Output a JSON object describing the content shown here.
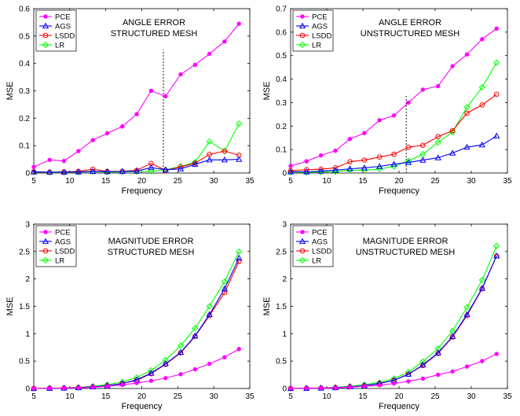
{
  "chart_data": [
    {
      "type": "line",
      "annotation": [
        "ANGLE ERROR",
        "STRUCTURED MESH"
      ],
      "xlabel": "Frequency",
      "ylabel": "MSE",
      "xlim": [
        5,
        35
      ],
      "ylim": [
        0,
        0.6
      ],
      "xticks": [
        5,
        10,
        15,
        20,
        25,
        30,
        35
      ],
      "yticks": [
        0,
        0.1,
        0.2,
        0.3,
        0.4,
        0.5,
        0.6
      ],
      "ytick_labels": [
        "0",
        "0.1",
        "0.2",
        "0.3",
        "0.4",
        "0.5",
        "0.6"
      ],
      "vline_x": 23,
      "legend_position": "top-left",
      "x": [
        5,
        7.2,
        9.2,
        11.2,
        13.2,
        15.2,
        17.3,
        19.3,
        21.3,
        23.3,
        25.4,
        27.4,
        29.4,
        31.5,
        33.5
      ],
      "series": [
        {
          "name": "PCE",
          "color": "#ff00ff",
          "marker": "dot",
          "values": [
            0.022,
            0.048,
            0.044,
            0.08,
            0.12,
            0.145,
            0.17,
            0.215,
            0.3,
            0.28,
            0.36,
            0.395,
            0.435,
            0.48,
            0.545
          ]
        },
        {
          "name": "AGS",
          "color": "#0000ff",
          "marker": "triangle",
          "values": [
            0.004,
            0.003,
            0.003,
            0.004,
            0.006,
            0.005,
            0.006,
            0.007,
            0.02,
            0.012,
            0.015,
            0.032,
            0.048,
            0.048,
            0.05
          ]
        },
        {
          "name": "LSDD",
          "color": "#ff0000",
          "marker": "circle",
          "values": [
            0.004,
            0.003,
            0.004,
            0.006,
            0.014,
            0.006,
            0.006,
            0.01,
            0.035,
            0.01,
            0.022,
            0.036,
            0.068,
            0.08,
            0.065
          ]
        },
        {
          "name": "LR",
          "color": "#00ff00",
          "marker": "diamond",
          "values": [
            0.003,
            0.002,
            0.002,
            0.003,
            0.005,
            0.003,
            0.004,
            0.005,
            0.006,
            0.012,
            0.024,
            0.04,
            0.115,
            0.08,
            0.18
          ]
        }
      ]
    },
    {
      "type": "line",
      "annotation": [
        "ANGLE ERROR",
        "UNSTRUCTURED MESH"
      ],
      "xlabel": "Frequency",
      "ylabel": "MSE",
      "xlim": [
        5,
        35
      ],
      "ylim": [
        0,
        0.7
      ],
      "xticks": [
        5,
        10,
        15,
        20,
        25,
        30,
        35
      ],
      "yticks": [
        0,
        0.1,
        0.2,
        0.3,
        0.4,
        0.5,
        0.6,
        0.7
      ],
      "ytick_labels": [
        "0",
        "0.1",
        "0.2",
        "0.3",
        "0.4",
        "0.5",
        "0.6",
        "0.7"
      ],
      "vline_x": 21,
      "legend_position": "top-left",
      "x": [
        5,
        7.2,
        9.2,
        11.2,
        13.2,
        15.2,
        17.3,
        19.3,
        21.3,
        23.3,
        25.4,
        27.4,
        29.4,
        31.5,
        33.5
      ],
      "series": [
        {
          "name": "PCE",
          "color": "#ff00ff",
          "marker": "dot",
          "values": [
            0.03,
            0.05,
            0.075,
            0.095,
            0.145,
            0.17,
            0.225,
            0.245,
            0.3,
            0.355,
            0.37,
            0.455,
            0.505,
            0.57,
            0.615
          ]
        },
        {
          "name": "AGS",
          "color": "#0000ff",
          "marker": "triangle",
          "values": [
            0.005,
            0.005,
            0.008,
            0.012,
            0.018,
            0.022,
            0.028,
            0.038,
            0.045,
            0.055,
            0.065,
            0.085,
            0.11,
            0.12,
            0.158
          ]
        },
        {
          "name": "LSDD",
          "color": "#ff0000",
          "marker": "circle",
          "values": [
            0.01,
            0.014,
            0.016,
            0.022,
            0.048,
            0.055,
            0.068,
            0.08,
            0.11,
            0.118,
            0.155,
            0.18,
            0.255,
            0.29,
            0.335
          ]
        },
        {
          "name": "LR",
          "color": "#00ff00",
          "marker": "diamond",
          "values": [
            0.003,
            0.003,
            0.004,
            0.006,
            0.012,
            0.012,
            0.017,
            0.028,
            0.052,
            0.08,
            0.13,
            0.175,
            0.28,
            0.365,
            0.47
          ]
        }
      ]
    },
    {
      "type": "line",
      "annotation": [
        "MAGNITUDE ERROR",
        "STRUCTURED MESH"
      ],
      "xlabel": "Frequency",
      "ylabel": "MSE",
      "xlim": [
        5,
        35
      ],
      "ylim": [
        0,
        3
      ],
      "xticks": [
        5,
        10,
        15,
        20,
        25,
        30,
        35
      ],
      "yticks": [
        0,
        0.5,
        1,
        1.5,
        2,
        2.5,
        3
      ],
      "ytick_labels": [
        "0",
        "0.5",
        "1",
        "1.5",
        "2",
        "2.5",
        "3"
      ],
      "vline_x": null,
      "legend_position": "top-left",
      "x": [
        5,
        7.2,
        9.2,
        11.2,
        13.2,
        15.2,
        17.3,
        19.3,
        21.3,
        23.3,
        25.4,
        27.4,
        29.4,
        31.5,
        33.5
      ],
      "series": [
        {
          "name": "PCE",
          "color": "#ff00ff",
          "marker": "dot",
          "values": [
            0.0,
            0.003,
            0.006,
            0.012,
            0.022,
            0.04,
            0.065,
            0.1,
            0.14,
            0.19,
            0.26,
            0.35,
            0.45,
            0.57,
            0.72
          ]
        },
        {
          "name": "AGS",
          "color": "#0000ff",
          "marker": "triangle",
          "values": [
            0.0,
            0.004,
            0.008,
            0.015,
            0.03,
            0.05,
            0.09,
            0.16,
            0.28,
            0.45,
            0.66,
            0.96,
            1.35,
            1.82,
            2.38
          ]
        },
        {
          "name": "LSDD",
          "color": "#ff0000",
          "marker": "circle",
          "values": [
            0.0,
            0.004,
            0.008,
            0.015,
            0.03,
            0.05,
            0.09,
            0.15,
            0.27,
            0.44,
            0.65,
            0.95,
            1.33,
            1.75,
            2.32
          ]
        },
        {
          "name": "LR",
          "color": "#00ff00",
          "marker": "diamond",
          "values": [
            0.0,
            0.005,
            0.01,
            0.02,
            0.04,
            0.07,
            0.12,
            0.2,
            0.33,
            0.52,
            0.78,
            1.1,
            1.5,
            1.95,
            2.5
          ]
        }
      ]
    },
    {
      "type": "line",
      "annotation": [
        "MAGNITUDE ERROR",
        "UNSTRUCTURED MESH"
      ],
      "xlabel": "Frequency",
      "ylabel": "MSE",
      "xlim": [
        5,
        35
      ],
      "ylim": [
        0,
        3
      ],
      "xticks": [
        5,
        10,
        15,
        20,
        25,
        30,
        35
      ],
      "yticks": [
        0,
        0.5,
        1,
        1.5,
        2,
        2.5,
        3
      ],
      "ytick_labels": [
        "0",
        "0.5",
        "1",
        "1.5",
        "2",
        "2.5",
        "3"
      ],
      "vline_x": null,
      "legend_position": "top-left",
      "x": [
        5,
        7.2,
        9.2,
        11.2,
        13.2,
        15.2,
        17.3,
        19.3,
        21.3,
        23.3,
        25.4,
        27.4,
        29.4,
        31.5,
        33.5
      ],
      "series": [
        {
          "name": "PCE",
          "color": "#ff00ff",
          "marker": "dot",
          "values": [
            0.0,
            0.003,
            0.006,
            0.012,
            0.022,
            0.04,
            0.06,
            0.09,
            0.13,
            0.18,
            0.25,
            0.31,
            0.4,
            0.5,
            0.63
          ]
        },
        {
          "name": "AGS",
          "color": "#0000ff",
          "marker": "triangle",
          "values": [
            0.0,
            0.004,
            0.008,
            0.015,
            0.03,
            0.05,
            0.09,
            0.15,
            0.26,
            0.43,
            0.65,
            0.95,
            1.35,
            1.83,
            2.42
          ]
        },
        {
          "name": "LSDD",
          "color": "#ff0000",
          "marker": "circle",
          "values": [
            0.0,
            0.004,
            0.008,
            0.015,
            0.03,
            0.05,
            0.09,
            0.15,
            0.26,
            0.42,
            0.64,
            0.94,
            1.33,
            1.82,
            2.42
          ]
        },
        {
          "name": "LR",
          "color": "#00ff00",
          "marker": "diamond",
          "values": [
            0.0,
            0.005,
            0.01,
            0.02,
            0.04,
            0.07,
            0.11,
            0.18,
            0.3,
            0.49,
            0.73,
            1.05,
            1.48,
            1.98,
            2.6
          ]
        }
      ]
    }
  ]
}
